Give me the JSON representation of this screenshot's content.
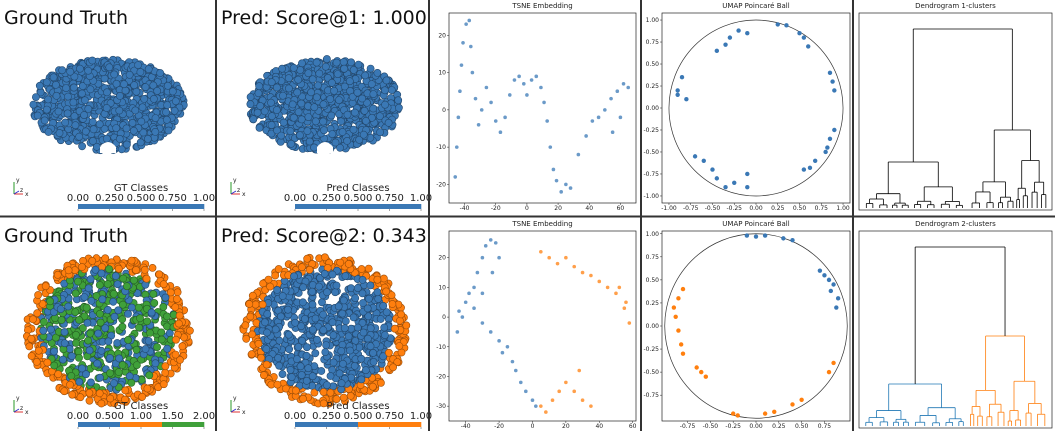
{
  "rows": [
    {
      "gt": {
        "title": "Ground Truth",
        "axes": [
          "y",
          "z",
          "x"
        ],
        "colorbar": {
          "label": "GT Classes",
          "colors": [
            "#3a78b5"
          ],
          "ticks": [
            {
              "value": 0,
              "label": "0.00"
            },
            {
              "value": 0.25,
              "label": "0.250"
            },
            {
              "value": 0.5,
              "label": "0.500"
            },
            {
              "value": 0.75,
              "label": "0.750"
            },
            {
              "value": 1,
              "label": "1.00"
            }
          ]
        }
      },
      "pred": {
        "title": "Pred: Score@1: 1.000",
        "axes": [
          "y",
          "z",
          "x"
        ],
        "colorbar": {
          "label": "Pred Classes",
          "colors": [
            "#3a78b5"
          ],
          "ticks": [
            {
              "value": 0,
              "label": "0.00"
            },
            {
              "value": 0.25,
              "label": "0.250"
            },
            {
              "value": 0.5,
              "label": "0.500"
            },
            {
              "value": 0.75,
              "label": "0.750"
            },
            {
              "value": 1,
              "label": "1.00"
            }
          ]
        }
      },
      "tsne": {
        "type": "scatter",
        "title": "TSNE Embedding",
        "xlim": [
          -50,
          70
        ],
        "ylim": [
          -25,
          26
        ],
        "xticks": [
          -40,
          -20,
          0,
          20,
          40,
          60
        ],
        "yticks": [
          -20,
          -10,
          0,
          10,
          20
        ],
        "series": [
          {
            "color": "#3a78b5",
            "x": [
              -46,
              -45,
              -44,
              -43,
              -42,
              -41,
              -39,
              -37,
              -36,
              -35,
              -33,
              -31,
              -29,
              -26,
              -23,
              -20,
              -17,
              -14,
              -11,
              -8,
              -5,
              -2,
              0,
              3,
              6,
              9,
              11,
              13,
              15,
              17,
              19,
              22,
              25,
              28,
              33,
              38,
              42,
              46,
              50,
              54,
              58,
              62,
              65,
              60,
              55
            ],
            "y": [
              -18,
              -10,
              -2,
              5,
              12,
              18,
              23,
              24,
              17,
              10,
              3,
              -4,
              0,
              6,
              2,
              -3,
              -6,
              -2,
              4,
              8,
              9,
              7,
              4,
              8,
              9,
              6,
              2,
              -3,
              -10,
              -16,
              -19,
              -22,
              -20,
              -21,
              -12,
              -7,
              -3,
              -2,
              0,
              3,
              5,
              7,
              6,
              -2,
              -6
            ]
          }
        ]
      },
      "umap": {
        "type": "scatter",
        "title": "UMAP Poincaré Ball",
        "xlim": [
          -1.08,
          1.08
        ],
        "ylim": [
          -1.08,
          1.08
        ],
        "xticks": [
          {
            "value": -1,
            "label": "-1.00"
          },
          {
            "value": -0.75,
            "label": "-0.75"
          },
          {
            "value": -0.5,
            "label": "-0.50"
          },
          {
            "value": -0.25,
            "label": "-0.25"
          },
          {
            "value": 0,
            "label": "0.00"
          },
          {
            "value": 0.25,
            "label": "0.25"
          },
          {
            "value": 0.5,
            "label": "0.50"
          },
          {
            "value": 0.75,
            "label": "0.75"
          },
          {
            "value": 1,
            "label": "1.00"
          }
        ],
        "yticks": [
          {
            "value": -1,
            "label": "-1.00"
          },
          {
            "value": -0.75,
            "label": "-0.75"
          },
          {
            "value": -0.5,
            "label": "-0.50"
          },
          {
            "value": -0.25,
            "label": "-0.25"
          },
          {
            "value": 0,
            "label": "0.00"
          },
          {
            "value": 0.25,
            "label": "0.25"
          },
          {
            "value": 0.5,
            "label": "0.50"
          },
          {
            "value": 0.75,
            "label": "0.75"
          },
          {
            "value": 1,
            "label": "1.00"
          }
        ],
        "series": [
          {
            "color": "#3a78b5",
            "x": [
              -0.45,
              -0.35,
              -0.3,
              -0.2,
              -0.1,
              0.25,
              0.35,
              0.5,
              0.55,
              0.6,
              0.85,
              0.88,
              0.9,
              -0.85,
              -0.9,
              -0.9,
              -0.8,
              0.85,
              0.82,
              0.8,
              0.9,
              -0.7,
              -0.6,
              -0.5,
              -0.45,
              -0.35,
              -0.25,
              -0.1,
              -0.1,
              0.55,
              0.62,
              0.68
            ],
            "y": [
              0.65,
              0.72,
              0.8,
              0.88,
              0.85,
              0.95,
              0.94,
              0.85,
              0.8,
              0.7,
              0.4,
              0.3,
              0.2,
              0.35,
              0.2,
              0.15,
              0.1,
              -0.35,
              -0.45,
              -0.5,
              -0.25,
              -0.55,
              -0.6,
              -0.7,
              -0.8,
              -0.9,
              -0.85,
              -0.75,
              -0.9,
              -0.7,
              -0.68,
              -0.6
            ]
          }
        ]
      },
      "dendrogram": {
        "title": "Dendrogram 1-clusters",
        "colors": [
          "#000000"
        ]
      }
    },
    {
      "gt": {
        "title": "Ground Truth",
        "axes": [
          "y",
          "z",
          "x"
        ],
        "colorbar": {
          "label": "GT Classes",
          "colors": [
            "#3a78b5",
            "#ff7f0e",
            "#3fa03a"
          ],
          "ticks": [
            {
              "value": 0,
              "label": "0.00"
            },
            {
              "value": 0.5,
              "label": "0.500"
            },
            {
              "value": 1,
              "label": "1.00"
            },
            {
              "value": 1.5,
              "label": "1.50"
            },
            {
              "value": 2,
              "label": "2.00"
            }
          ]
        }
      },
      "pred": {
        "title": "Pred: Score@2: 0.343",
        "axes": [
          "y",
          "z",
          "x"
        ],
        "colorbar": {
          "label": "Pred Classes",
          "colors": [
            "#3a78b5",
            "#ff7f0e"
          ],
          "ticks": [
            {
              "value": 0,
              "label": "0.00"
            },
            {
              "value": 0.25,
              "label": "0.250"
            },
            {
              "value": 0.5,
              "label": "0.500"
            },
            {
              "value": 0.75,
              "label": "0.750"
            },
            {
              "value": 1,
              "label": "1.00"
            }
          ]
        }
      },
      "tsne": {
        "type": "scatter",
        "title": "TSNE Embedding",
        "xlim": [
          -50,
          62
        ],
        "ylim": [
          -35,
          29
        ],
        "xticks": [
          -40,
          -20,
          0,
          20,
          40,
          60
        ],
        "yticks": [
          -30,
          -20,
          -10,
          0,
          10,
          20
        ],
        "series": [
          {
            "color": "#3a78b5",
            "x": [
              -45,
              -44,
              -42,
              -40,
              -38,
              -35,
              -33,
              -30,
              -28,
              -25,
              -22,
              -20,
              -24,
              -30,
              -35,
              -30,
              -25,
              -20,
              -18,
              -15,
              -12,
              -10,
              -7,
              -4,
              0,
              2
            ],
            "y": [
              -5,
              2,
              0,
              5,
              8,
              10,
              15,
              20,
              24,
              26,
              25,
              20,
              15,
              8,
              3,
              -2,
              -5,
              -8,
              -12,
              -10,
              -15,
              -18,
              -22,
              -25,
              -28,
              -30
            ]
          },
          {
            "color": "#ff7f0e",
            "x": [
              5,
              8,
              12,
              16,
              20,
              25,
              30,
              35,
              28,
              5,
              10,
              15,
              20,
              25,
              30,
              35,
              40,
              45,
              50,
              55,
              58,
              56,
              52
            ],
            "y": [
              -30,
              -32,
              -28,
              -25,
              -22,
              -25,
              -28,
              -30,
              -18,
              22,
              20,
              18,
              20,
              17,
              15,
              14,
              12,
              10,
              8,
              3,
              -2,
              5,
              10
            ]
          }
        ]
      },
      "umap": {
        "type": "scatter",
        "title": "UMAP Poincaré Ball",
        "xlim": [
          -1.03,
          1.03
        ],
        "ylim": [
          -1.03,
          1.03
        ],
        "xticks": [
          {
            "value": -0.75,
            "label": "-0.75"
          },
          {
            "value": -0.5,
            "label": "-0.50"
          },
          {
            "value": -0.25,
            "label": "-0.25"
          },
          {
            "value": 0,
            "label": "0.00"
          },
          {
            "value": 0.25,
            "label": "0.25"
          },
          {
            "value": 0.5,
            "label": "0.50"
          },
          {
            "value": 0.75,
            "label": "0.75"
          }
        ],
        "yticks": [
          {
            "value": -0.75,
            "label": "-0.75"
          },
          {
            "value": -0.5,
            "label": "-0.50"
          },
          {
            "value": -0.25,
            "label": "-0.25"
          },
          {
            "value": 0,
            "label": "0.00"
          },
          {
            "value": 0.25,
            "label": "0.25"
          },
          {
            "value": 0.5,
            "label": "0.50"
          },
          {
            "value": 0.75,
            "label": "0.75"
          },
          {
            "value": 1,
            "label": "1.00"
          }
        ],
        "series": [
          {
            "color": "#3a78b5",
            "x": [
              -0.1,
              0,
              0.1,
              0.3,
              0.4,
              0.7,
              0.75,
              0.8,
              0.85,
              0.82,
              0.9,
              0.88
            ],
            "y": [
              0.98,
              0.97,
              0.98,
              0.95,
              0.93,
              0.6,
              0.55,
              0.5,
              0.45,
              0.38,
              0.3,
              0.2
            ]
          },
          {
            "color": "#ff7f0e",
            "x": [
              -0.8,
              -0.85,
              -0.9,
              -0.88,
              -0.85,
              -0.82,
              -0.8,
              -0.65,
              -0.6,
              -0.55,
              -0.25,
              -0.2,
              0.1,
              0.2,
              0.4,
              0.5,
              0.8,
              0.85
            ],
            "y": [
              0.4,
              0.3,
              0.2,
              0.1,
              -0.05,
              -0.2,
              -0.3,
              -0.45,
              -0.5,
              -0.55,
              -0.95,
              -0.97,
              -0.95,
              -0.93,
              -0.85,
              -0.8,
              -0.5,
              -0.4
            ]
          }
        ]
      },
      "dendrogram": {
        "title": "Dendrogram 2-clusters",
        "colors": [
          "#1f77b4",
          "#ff7f0e"
        ]
      }
    }
  ]
}
